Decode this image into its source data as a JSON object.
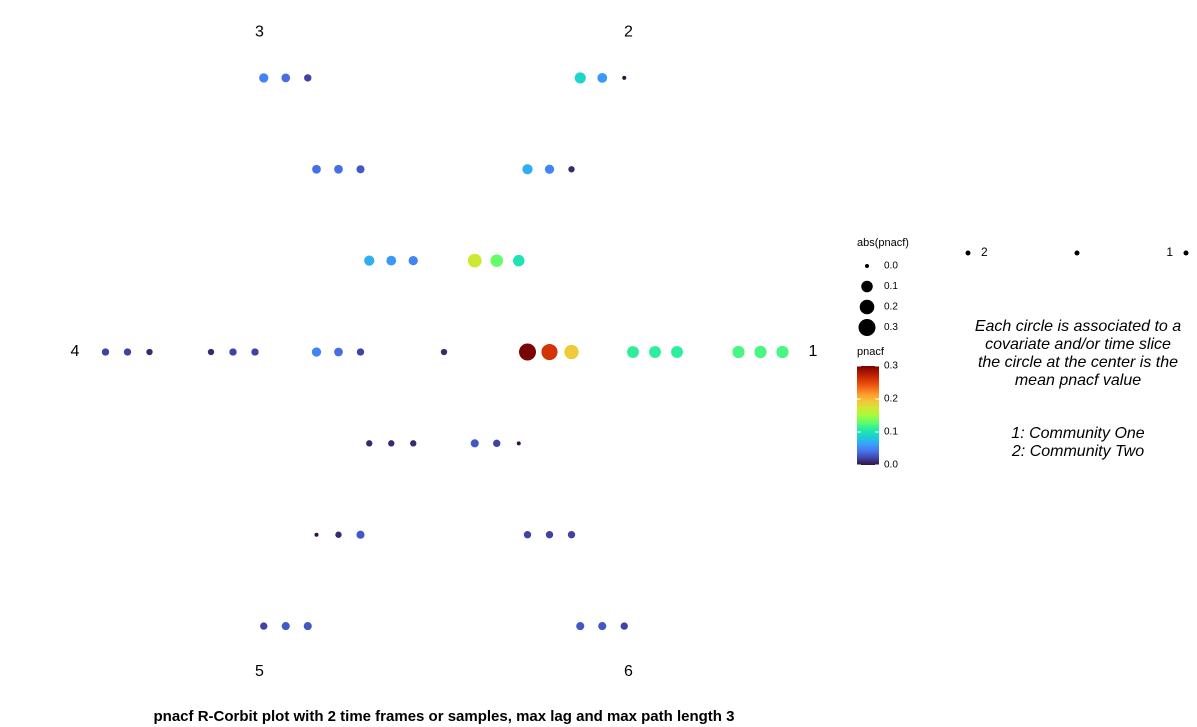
{
  "chart_data": {
    "type": "corbit",
    "title": "pnacf R-Corbit plot with 2 time frames or samples, max lag and max path length 3",
    "center_value": 0.01,
    "arms": [
      {
        "label": "1",
        "clusters": [
          [
            0.3,
            0.26,
            0.19
          ],
          [
            0.11,
            0.11,
            0.11
          ],
          [
            0.12,
            0.12,
            0.12
          ]
        ]
      },
      {
        "label": "2",
        "clusters": [
          [
            0.17,
            0.13,
            0.1
          ],
          [
            0.07,
            0.05,
            0.01
          ],
          [
            0.09,
            0.06,
            0.0
          ]
        ]
      },
      {
        "label": "3",
        "clusters": [
          [
            0.07,
            0.06,
            0.05
          ],
          [
            0.04,
            0.04,
            0.03
          ],
          [
            0.05,
            0.04,
            0.02
          ]
        ]
      },
      {
        "label": "4",
        "clusters": [
          [
            0.05,
            0.04,
            0.02
          ],
          [
            0.01,
            0.02,
            0.02
          ],
          [
            0.02,
            0.02,
            0.01
          ]
        ]
      },
      {
        "label": "5",
        "clusters": [
          [
            0.01,
            0.01,
            0.01
          ],
          [
            0.0,
            0.01,
            0.03
          ],
          [
            0.02,
            0.03,
            0.03
          ]
        ]
      },
      {
        "label": "6",
        "clusters": [
          [
            0.03,
            0.02,
            0.0
          ],
          [
            0.02,
            0.02,
            0.02
          ],
          [
            0.03,
            0.03,
            0.02
          ]
        ]
      }
    ],
    "size_legend": {
      "title": "abs(pnacf)",
      "values": [
        {
          "value": 0,
          "label": "0.0"
        },
        {
          "value": 0.1,
          "label": "0.1"
        },
        {
          "value": 0.2,
          "label": "0.2"
        },
        {
          "value": 0.3,
          "label": "0.3"
        }
      ]
    },
    "color_legend": {
      "title": "pnacf",
      "lim": [
        0,
        0.3
      ],
      "ticks": [
        {
          "value": 0,
          "label": "0.0"
        },
        {
          "value": 0.1,
          "label": "0.1"
        },
        {
          "value": 0.2,
          "label": "0.2"
        },
        {
          "value": 0.3,
          "label": "0.3"
        }
      ],
      "colors": [
        "#30123b",
        "#4145ab",
        "#4675ed",
        "#39a2fc",
        "#1bcfd4",
        "#24eca6",
        "#61fc6c",
        "#a4fc3b",
        "#d1e834",
        "#f3c63a",
        "#fe9b2d",
        "#f36315",
        "#d93806",
        "#b11901",
        "#7a0402"
      ]
    },
    "communities": [
      "2",
      "1"
    ],
    "note_lines": [
      "Each circle is associated to a",
      "covariate and/or time slice",
      "the circle at the center is the",
      "mean pnacf value"
    ],
    "community_notes": [
      "1: Community One",
      "2: Community Two"
    ]
  }
}
